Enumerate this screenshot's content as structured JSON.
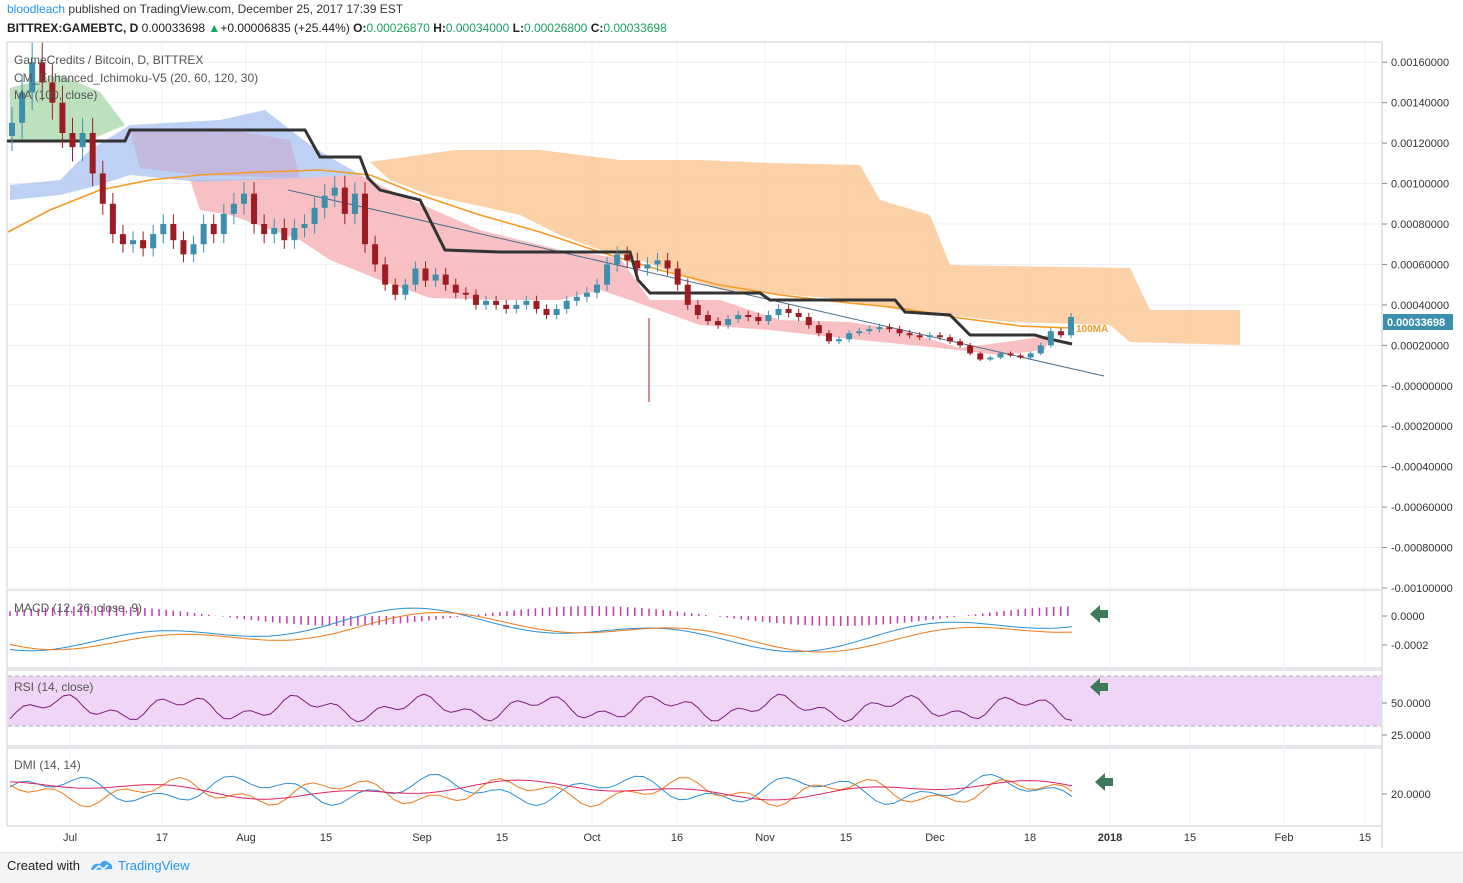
{
  "header": {
    "author": "bloodleach",
    "published": "published on TradingView.com, December 25, 2017 17:39 EST",
    "symbol": "BITTREX:GAMEBTC, D",
    "last": "0.00033698",
    "change": "+0.00006835 (+25.44%)",
    "o_label": "O:",
    "o": "0.00026870",
    "h_label": "H:",
    "h": "0.00034000",
    "l_label": "L:",
    "l": "0.00026800",
    "c_label": "C:",
    "c": "0.00033698"
  },
  "legend": {
    "title": "GameCredits / Bitcoin, D, BITTREX",
    "ichimoku": "CM_Enhanced_Ichimoku-V5 (20, 60, 120, 30)",
    "ma": "MA (100, close)",
    "ma_tag": "100MA",
    "price_tag": "0.00033698"
  },
  "panes": {
    "macd": "MACD (12, 26, close, 9)",
    "rsi": "RSI (14, close)",
    "dmi": "DMI (14, 14)"
  },
  "footer": {
    "created_with": "Created with",
    "brand": "TradingView"
  },
  "colors": {
    "up": "#3d8fae",
    "down": "#9b1c23",
    "ma100": "#f59a23",
    "baseline": "#333333",
    "cloud_orange": "#fcc999",
    "cloud_pink": "#f7b9bd",
    "cloud_blue": "#a8c2f0",
    "cloud_green": "#a7d7a9",
    "trendline": "#4a6f8a",
    "rsi_band": "#efd6f7",
    "arrow": "#3c7a5a"
  },
  "chart_data": [
    {
      "type": "candlestick",
      "title": "GameCredits / Bitcoin, D, BITTREX",
      "x_ticks": [
        "Jul",
        "17",
        "Aug",
        "15",
        "Sep",
        "15",
        "Oct",
        "16",
        "Nov",
        "15",
        "Dec",
        "18",
        "2018",
        "15",
        "Feb",
        "15"
      ],
      "y_ticks": [
        "0.00160000",
        "0.00140000",
        "0.00120000",
        "0.00100000",
        "0.00080000",
        "0.00060000",
        "0.00040000",
        "0.00020000",
        "-0.00000000",
        "-0.00020000",
        "-0.00040000",
        "-0.00060000",
        "-0.00080000",
        "-0.00100000"
      ],
      "ylim": [
        -0.001,
        0.0017
      ],
      "close": [
        0.0013,
        0.00145,
        0.0016,
        0.0015,
        0.0014,
        0.00125,
        0.00118,
        0.00125,
        0.00105,
        0.0009,
        0.00075,
        0.0007,
        0.00072,
        0.00068,
        0.00075,
        0.0008,
        0.00072,
        0.00065,
        0.0007,
        0.0008,
        0.00075,
        0.00085,
        0.0009,
        0.00095,
        0.0008,
        0.00075,
        0.00078,
        0.00072,
        0.00078,
        0.0008,
        0.00088,
        0.00094,
        0.00098,
        0.00085,
        0.00095,
        0.0007,
        0.0006,
        0.0005,
        0.00045,
        0.0005,
        0.00058,
        0.00052,
        0.00055,
        0.0005,
        0.00046,
        0.00045,
        0.0004,
        0.00042,
        0.0004,
        0.00038,
        0.0004,
        0.00042,
        0.00038,
        0.00035,
        0.00038,
        0.00042,
        0.00044,
        0.00046,
        0.0005,
        0.0006,
        0.00065,
        0.00062,
        0.00058,
        0.0006,
        0.00062,
        0.00058,
        0.0005,
        0.0004,
        0.00035,
        0.00032,
        0.0003,
        0.00033,
        0.00035,
        0.00034,
        0.00032,
        0.00035,
        0.00038,
        0.00036,
        0.00034,
        0.0003,
        0.00026,
        0.00022,
        0.00023,
        0.00026,
        0.00027,
        0.00028,
        0.00029,
        0.00028,
        0.00026,
        0.00025,
        0.00024,
        0.00025,
        0.00024,
        0.00022,
        0.0002,
        0.00016,
        0.00013,
        0.00014,
        0.00016,
        0.00015,
        0.00014,
        0.00016,
        0.0002,
        0.00027,
        0.00025,
        0.00034
      ],
      "ma100_last": 0.00031,
      "trendline": [
        [
          0.00105,
          0.00011
        ]
      ],
      "last_price": 0.00033698
    },
    {
      "type": "line",
      "title": "MACD (12, 26, close, 9)",
      "y_ticks": [
        "0.0000",
        "-0.0002"
      ]
    },
    {
      "type": "line",
      "title": "RSI (14, close)",
      "y_ticks": [
        "50.0000",
        "25.0000"
      ]
    },
    {
      "type": "line",
      "title": "DMI (14, 14)",
      "y_ticks": [
        "20.0000"
      ]
    }
  ]
}
